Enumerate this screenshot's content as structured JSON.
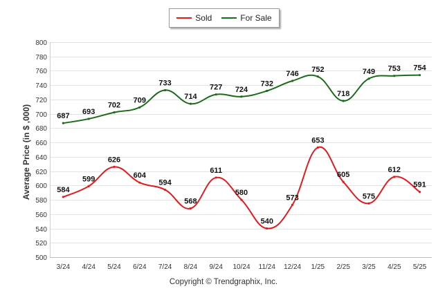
{
  "chart_data": {
    "type": "line",
    "title": "",
    "xlabel": "",
    "ylabel": "Average Price (in $ ,000)",
    "categories": [
      "3/24",
      "4/24",
      "5/24",
      "6/24",
      "7/24",
      "8/24",
      "9/24",
      "10/24",
      "11/24",
      "12/24",
      "1/25",
      "2/25",
      "3/25",
      "4/25",
      "5/25"
    ],
    "ylim": [
      500,
      800
    ],
    "yticks": [
      500,
      520,
      540,
      560,
      580,
      600,
      620,
      640,
      660,
      680,
      700,
      720,
      740,
      760,
      780,
      800
    ],
    "grid": true,
    "legend_position": "top-center",
    "series": [
      {
        "name": "Sold",
        "color": "#e31a1c",
        "values": [
          584,
          599,
          626,
          604,
          594,
          568,
          611,
          580,
          540,
          573,
          653,
          605,
          575,
          612,
          591
        ]
      },
      {
        "name": "For Sale",
        "color": "#1a6b1a",
        "values": [
          687,
          693,
          702,
          709,
          733,
          714,
          727,
          724,
          732,
          746,
          752,
          718,
          749,
          753,
          754
        ]
      }
    ]
  },
  "footer": "Copyright © Trendgraphix, Inc."
}
